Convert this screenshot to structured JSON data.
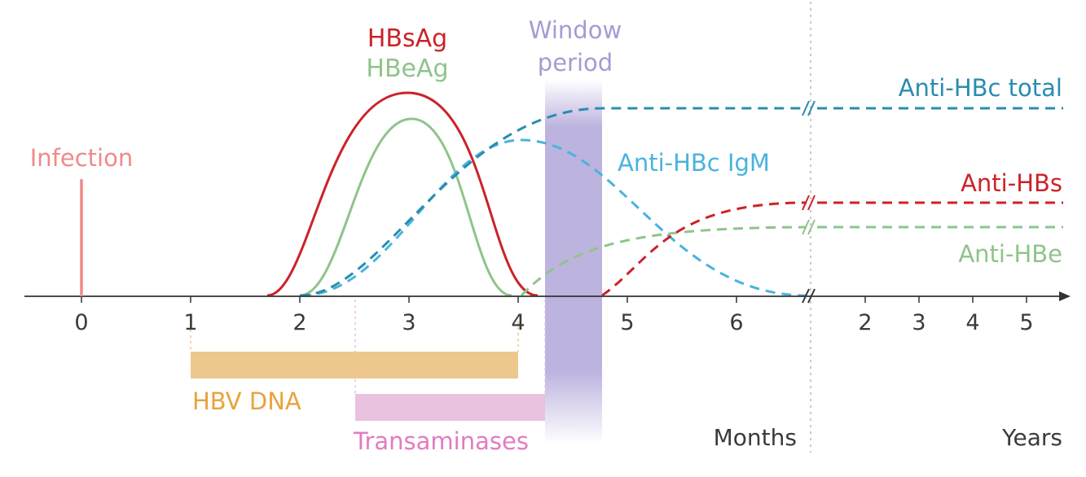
{
  "colors": {
    "infection": "#ef8a8a",
    "hbsag": "#cc2229",
    "hbeag": "#8fc48a",
    "anti_hbc_total": "#2a8cb0",
    "anti_hbc_igm": "#49b3de",
    "window": "#a79ad4",
    "hbv_dna": "#eec78e",
    "hbv_dna_text": "#e8a33c",
    "transaminases": "#e8c2df",
    "transaminases_text": "#e27bc2",
    "axis": "#333333"
  },
  "labels": {
    "infection": "Infection",
    "hbsag": "HBsAg",
    "hbeag": "HBeAg",
    "window_line1": "Window",
    "window_line2": "period",
    "anti_hbc_total": "Anti-HBc total",
    "anti_hbc_igm": "Anti-HBc IgM",
    "anti_hbs": "Anti-HBs",
    "anti_hbe": "Anti-HBe",
    "hbv_dna": "HBV DNA",
    "transaminases": "Transaminases",
    "months": "Months",
    "years": "Years"
  },
  "axis": {
    "month_ticks": [
      "0",
      "1",
      "2",
      "3",
      "4",
      "5",
      "6"
    ],
    "year_ticks": [
      "2",
      "3",
      "4",
      "5"
    ]
  }
}
